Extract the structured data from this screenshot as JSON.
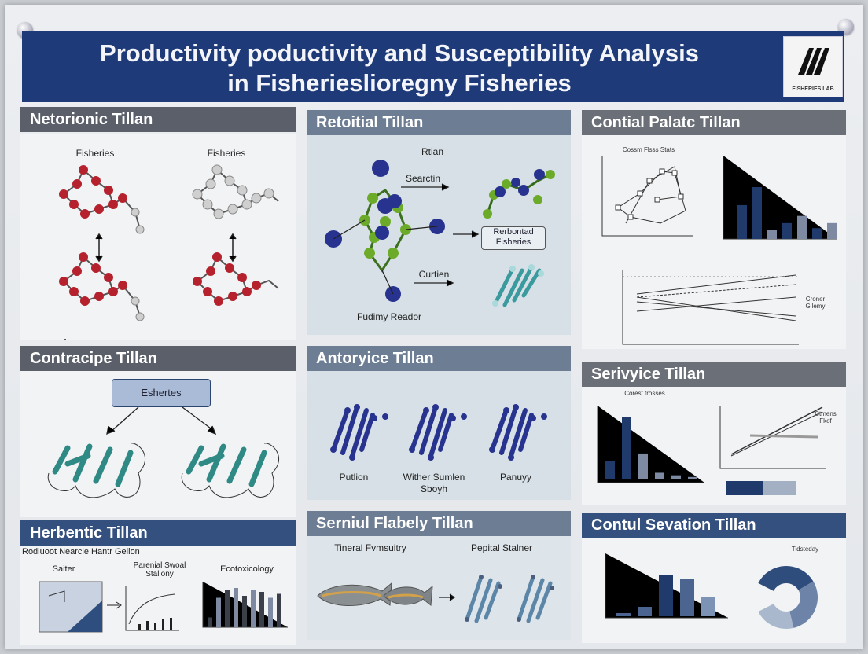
{
  "poster": {
    "title_line1": "Productivity poductivity and Susceptibility Analysis",
    "title_line2": "in Fisherieslioregny Fisheries",
    "logo_text": "FISHERIES LAB"
  },
  "sections": {
    "s1": {
      "title": "Netorionic Tillan",
      "label_left": "Fisheries",
      "label_right": "Fisheries"
    },
    "s2": {
      "title": "Retoitial Tillan",
      "label_top": "Rtian",
      "label_search": "Searctin",
      "label_box_l1": "Rerbontad",
      "label_box_l2": "Fisheries",
      "label_curr": "Curtien",
      "label_bottom": "Fudimy Reador"
    },
    "s3": {
      "title": "Contial Palatc Tillan",
      "scatter_caption": "Cossm Flsss Stats",
      "line_label": "Croner Gilemy"
    },
    "s4": {
      "title": "Contracipe Tillan",
      "box_label": "Eshertes"
    },
    "s5": {
      "title": "Antoryice Tillan",
      "label1": "Putlion",
      "label2_l1": "Wither Sumlen",
      "label2_l2": "Sboyh",
      "label3": "Panuyy"
    },
    "s6": {
      "title": "Serivyice Tillan",
      "bar_caption": "Corest trosses",
      "line_label_l1": "Ctmens",
      "line_label_l2": "Fkof"
    },
    "s7": {
      "title": "Herbentic Tillan",
      "subtitle": "Rodluoot Nearcle Hantr Gellon",
      "label_a": "Saiter",
      "label_b_l1": "Parenial Swoal",
      "label_b_l2": "Stallony",
      "label_c": "Ecotoxicology"
    },
    "s8": {
      "title": "Serniul Flabely Tillan",
      "label_left": "Tineral Fvmsuitry",
      "label_right": "Pepital Stalner"
    },
    "s9": {
      "title": "Contul Sevation Tillan",
      "donut_label": "Tidsteday"
    }
  },
  "chart_data": [
    {
      "type": "bar",
      "title": "",
      "values": [
        47,
        72,
        12,
        22,
        32,
        15,
        22
      ]
    },
    {
      "type": "bar",
      "title": "",
      "values": [
        22,
        75,
        31,
        8,
        5,
        3
      ]
    },
    {
      "type": "bar",
      "title": "",
      "values": [
        4,
        12,
        52,
        48,
        24
      ]
    },
    {
      "type": "bar",
      "title": "",
      "values": [
        10,
        30,
        38,
        40,
        32,
        38,
        36,
        30,
        34
      ]
    },
    {
      "type": "pie",
      "title": "",
      "values": [
        40,
        35,
        25
      ]
    }
  ],
  "colors": {
    "title_bg": "#1e3a78",
    "bar_navy": "#1f3a6b",
    "bar_grey": "#7d8aa1",
    "atom_red": "#b5222e",
    "atom_blue": "#27338f",
    "atom_green": "#6cab2a",
    "protein_teal": "#2f8a86"
  }
}
